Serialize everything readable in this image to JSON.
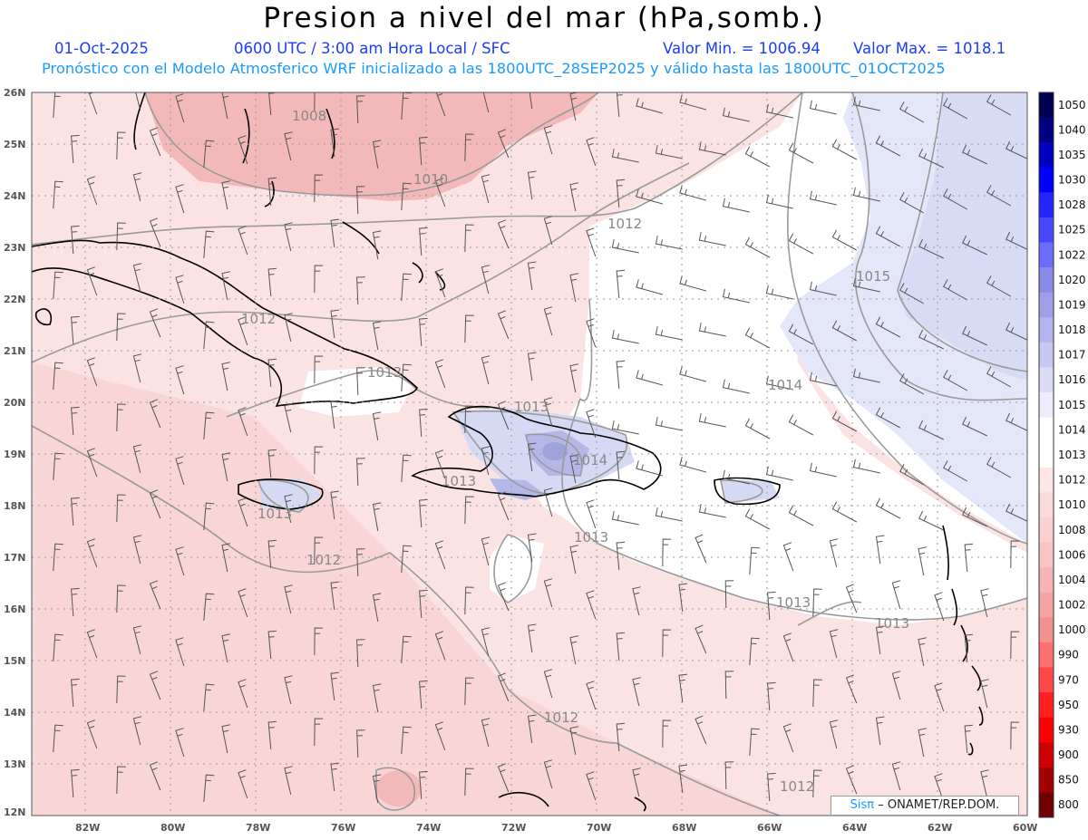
{
  "header": {
    "title": "Presion a nivel del mar (hPa,somb.)",
    "date": "01-Oct-2025",
    "time_info": "0600 UTC / 3:00 am Hora Local / SFC",
    "min_label": "Valor Min. = 1006.94",
    "max_label": "Valor Max. = 1018.1",
    "forecast_note": "Pronóstico con el Modelo Atmosferico WRF inicializado a las 1800UTC_28SEP2025 y válido hasta las  1800UTC_01OCT2025"
  },
  "map": {
    "lon_ticks": [
      "82W",
      "80W",
      "78W",
      "76W",
      "74W",
      "72W",
      "70W",
      "68W",
      "66W",
      "64W",
      "62W",
      "60W"
    ],
    "lat_ticks": [
      "26N",
      "25N",
      "24N",
      "23N",
      "22N",
      "21N",
      "20N",
      "19N",
      "18N",
      "17N",
      "16N",
      "15N",
      "14N",
      "13N",
      "12N"
    ],
    "lon_range": [
      -83.2,
      -60
    ],
    "lat_range": [
      12,
      26
    ],
    "isobar_labels": [
      "1008",
      "1010",
      "1012",
      "1015",
      "1012",
      "1013",
      "1013",
      "1014",
      "1014",
      "1013",
      "1013",
      "1013",
      "1012",
      "1012",
      "1013",
      "1012",
      "1013"
    ],
    "colors": {
      "pale_pink": "#fbe3e3",
      "pink": "#f7d3d3",
      "deep_pink": "#f2b0b0",
      "white": "#ffffff",
      "lavender": "#e6e8fb",
      "blue_light": "#c9cbef",
      "blue_mid": "#a4a8df"
    }
  },
  "colorbar": {
    "labels": [
      "1050",
      "1040",
      "1035",
      "1030",
      "1028",
      "1025",
      "1022",
      "1020",
      "1019",
      "1018",
      "1017",
      "1016",
      "1015",
      "1014",
      "1013",
      "1012",
      "1010",
      "1008",
      "1006",
      "1004",
      "1002",
      "1000",
      "990",
      "970",
      "950",
      "930",
      "900",
      "850",
      "800"
    ],
    "colors": [
      "#000050",
      "#000080",
      "#0000c0",
      "#0000ff",
      "#2424ff",
      "#4848ff",
      "#6c6cff",
      "#8a8ae8",
      "#a0a0e8",
      "#b4b4ee",
      "#c8c8f4",
      "#dcdcf8",
      "#ececfc",
      "#ffffff",
      "#ffffff",
      "#fde6e6",
      "#fbdada",
      "#fad0d0",
      "#f8c4c4",
      "#f6b4b4",
      "#f4a4a4",
      "#f29090",
      "#ff7070",
      "#ff4848",
      "#ff2020",
      "#ff0000",
      "#d00000",
      "#a00000",
      "#700000"
    ]
  },
  "credit": {
    "brand": "Sisπ",
    "text": "– ONAMET/REP.DOM."
  }
}
